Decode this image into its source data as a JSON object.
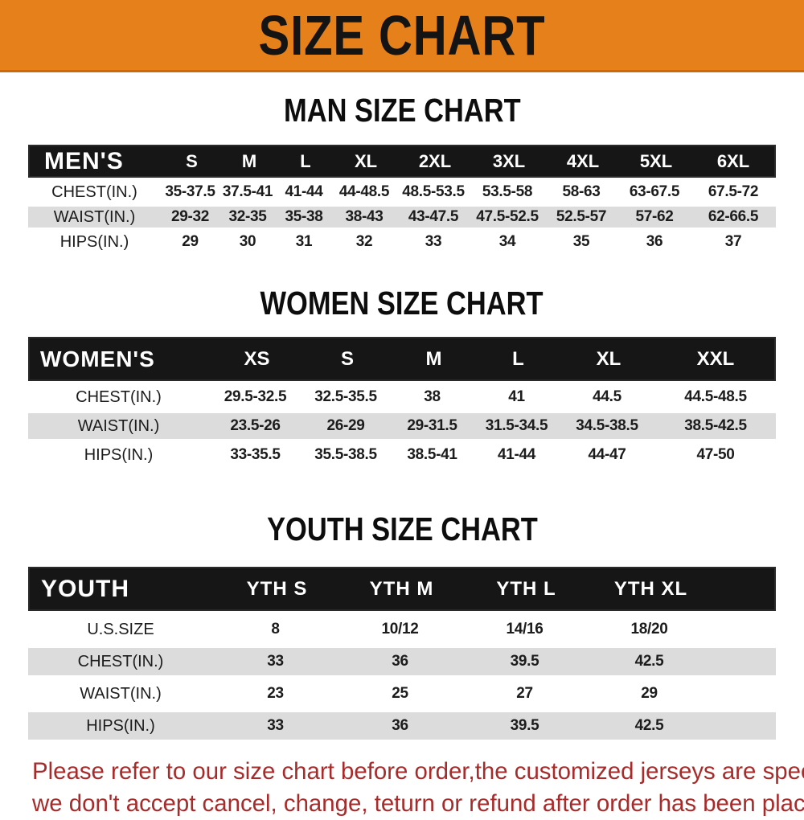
{
  "banner": {
    "title": "SIZE CHART"
  },
  "sections": {
    "men": {
      "heading": "MAN SIZE CHART",
      "table": {
        "label": "MEN'S",
        "columns": [
          "S",
          "M",
          "L",
          "XL",
          "2XL",
          "3XL",
          "4XL",
          "5XL",
          "6XL"
        ],
        "rows": [
          {
            "label": "CHEST(IN.)",
            "values": [
              "35-37.5",
              "37.5-41",
              "41-44",
              "44-48.5",
              "48.5-53.5",
              "53.5-58",
              "58-63",
              "63-67.5",
              "67.5-72"
            ]
          },
          {
            "label": "WAIST(IN.)",
            "values": [
              "29-32",
              "32-35",
              "35-38",
              "38-43",
              "43-47.5",
              "47.5-52.5",
              "52.5-57",
              "57-62",
              "62-66.5"
            ]
          },
          {
            "label": "HIPS(IN.)",
            "values": [
              "29",
              "30",
              "31",
              "32",
              "33",
              "34",
              "35",
              "36",
              "37"
            ]
          }
        ]
      }
    },
    "women": {
      "heading": "WOMEN SIZE CHART",
      "table": {
        "label": "WOMEN'S",
        "columns": [
          "XS",
          "S",
          "M",
          "L",
          "XL",
          "XXL"
        ],
        "rows": [
          {
            "label": "CHEST(IN.)",
            "values": [
              "29.5-32.5",
              "32.5-35.5",
              "38",
              "41",
              "44.5",
              "44.5-48.5"
            ]
          },
          {
            "label": "WAIST(IN.)",
            "values": [
              "23.5-26",
              "26-29",
              "29-31.5",
              "31.5-34.5",
              "34.5-38.5",
              "38.5-42.5"
            ]
          },
          {
            "label": "HIPS(IN.)",
            "values": [
              "33-35.5",
              "35.5-38.5",
              "38.5-41",
              "41-44",
              "44-47",
              "47-50"
            ]
          }
        ]
      }
    },
    "youth": {
      "heading": "YOUTH SIZE CHART",
      "table": {
        "label": "YOUTH",
        "columns": [
          "YTH S",
          "YTH M",
          "YTH L",
          "YTH XL"
        ],
        "rows": [
          {
            "label": "U.S.SIZE",
            "values": [
              "8",
              "10/12",
              "14/16",
              "18/20"
            ]
          },
          {
            "label": "CHEST(IN.)",
            "values": [
              "33",
              "36",
              "39.5",
              "42.5"
            ]
          },
          {
            "label": "WAIST(IN.)",
            "values": [
              "23",
              "25",
              "27",
              "29"
            ]
          },
          {
            "label": "HIPS(IN.)",
            "values": [
              "33",
              "36",
              "39.5",
              "42.5"
            ]
          }
        ]
      }
    }
  },
  "footer": {
    "line1": "Please refer to our size chart before order,the customized jerseys are special products,",
    "line2": "we don't accept cancel, change, teturn or refund after order has been placed!"
  },
  "colors": {
    "banner_bg": "#E6801B",
    "table_header_bg": "#161616",
    "row_alt_bg": "#DCDCDC",
    "notice_text": "#A62C2C"
  }
}
